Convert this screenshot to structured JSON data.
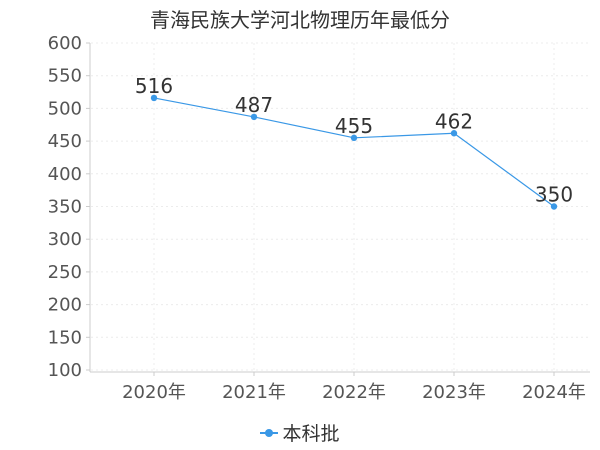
{
  "chart_data": {
    "type": "line",
    "title": "青海民族大学河北物理历年最低分",
    "categories": [
      "2020年",
      "2021年",
      "2022年",
      "2023年",
      "2024年"
    ],
    "series": [
      {
        "name": "本科批",
        "values": [
          516,
          487,
          455,
          462,
          350
        ],
        "color": "#3a98e6"
      }
    ],
    "ylim": [
      100,
      600
    ],
    "yticks": [
      100,
      150,
      200,
      250,
      300,
      350,
      400,
      450,
      500,
      550,
      600
    ],
    "xlabel": "",
    "ylabel": "",
    "grid": true,
    "legend_position": "bottom-center"
  }
}
